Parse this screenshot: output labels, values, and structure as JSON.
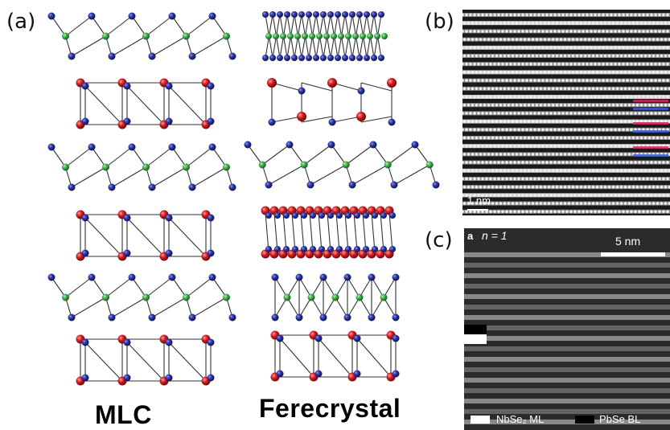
{
  "panels": {
    "a": "(a)",
    "b": "(b)",
    "c": "(c)"
  },
  "titles": {
    "mlc": "MLC",
    "ferecrystal": "Ferecrystal"
  },
  "micrograph_b": {
    "scalebar": "1 nm"
  },
  "micrograph_c": {
    "sublabel": "a",
    "n_label": "n = 1",
    "scalebar": "5 nm",
    "legend_white": "NbSe₂ ML",
    "legend_black": "PbSe BL"
  },
  "colors": {
    "blue_atom": "#2b34a6",
    "green_atom": "#3fb24a",
    "red_atom": "#d81d22"
  }
}
